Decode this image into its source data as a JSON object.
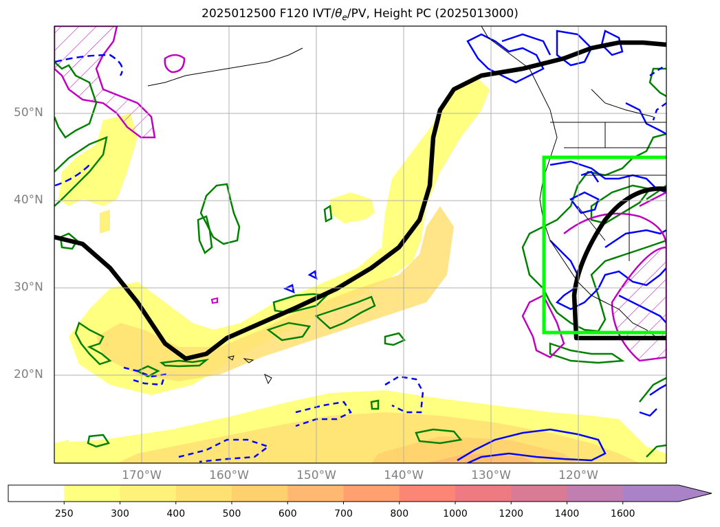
{
  "title": {
    "prefix": "2025012500 F120 IVT/",
    "theta": "θ",
    "theta_sub": "e",
    "suffix": "/PV, Height PC (2025013000)"
  },
  "lat_labels": [
    "50°N",
    "40°N",
    "30°N",
    "20°N"
  ],
  "lon_labels": [
    "170°W",
    "160°W",
    "150°W",
    "140°W",
    "130°W",
    "120°W"
  ],
  "colorbar": {
    "ticks": [
      "250",
      "300",
      "400",
      "500",
      "600",
      "700",
      "800",
      "1000",
      "1200",
      "1400",
      "1600"
    ],
    "colors": [
      "#ffff80",
      "#fff27a",
      "#ffe173",
      "#ffd06e",
      "#ffb872",
      "#ffa070",
      "#fb8676",
      "#ee7b82",
      "#d97b95",
      "#c07fb0",
      "#a982c7"
    ],
    "extend": "max"
  },
  "colors": {
    "ivt_contour_green": "#008000",
    "pv_blue": "#0000ff",
    "theta_magenta": "#c000c0",
    "height_line": "#000000",
    "box": "#00ff00"
  }
}
